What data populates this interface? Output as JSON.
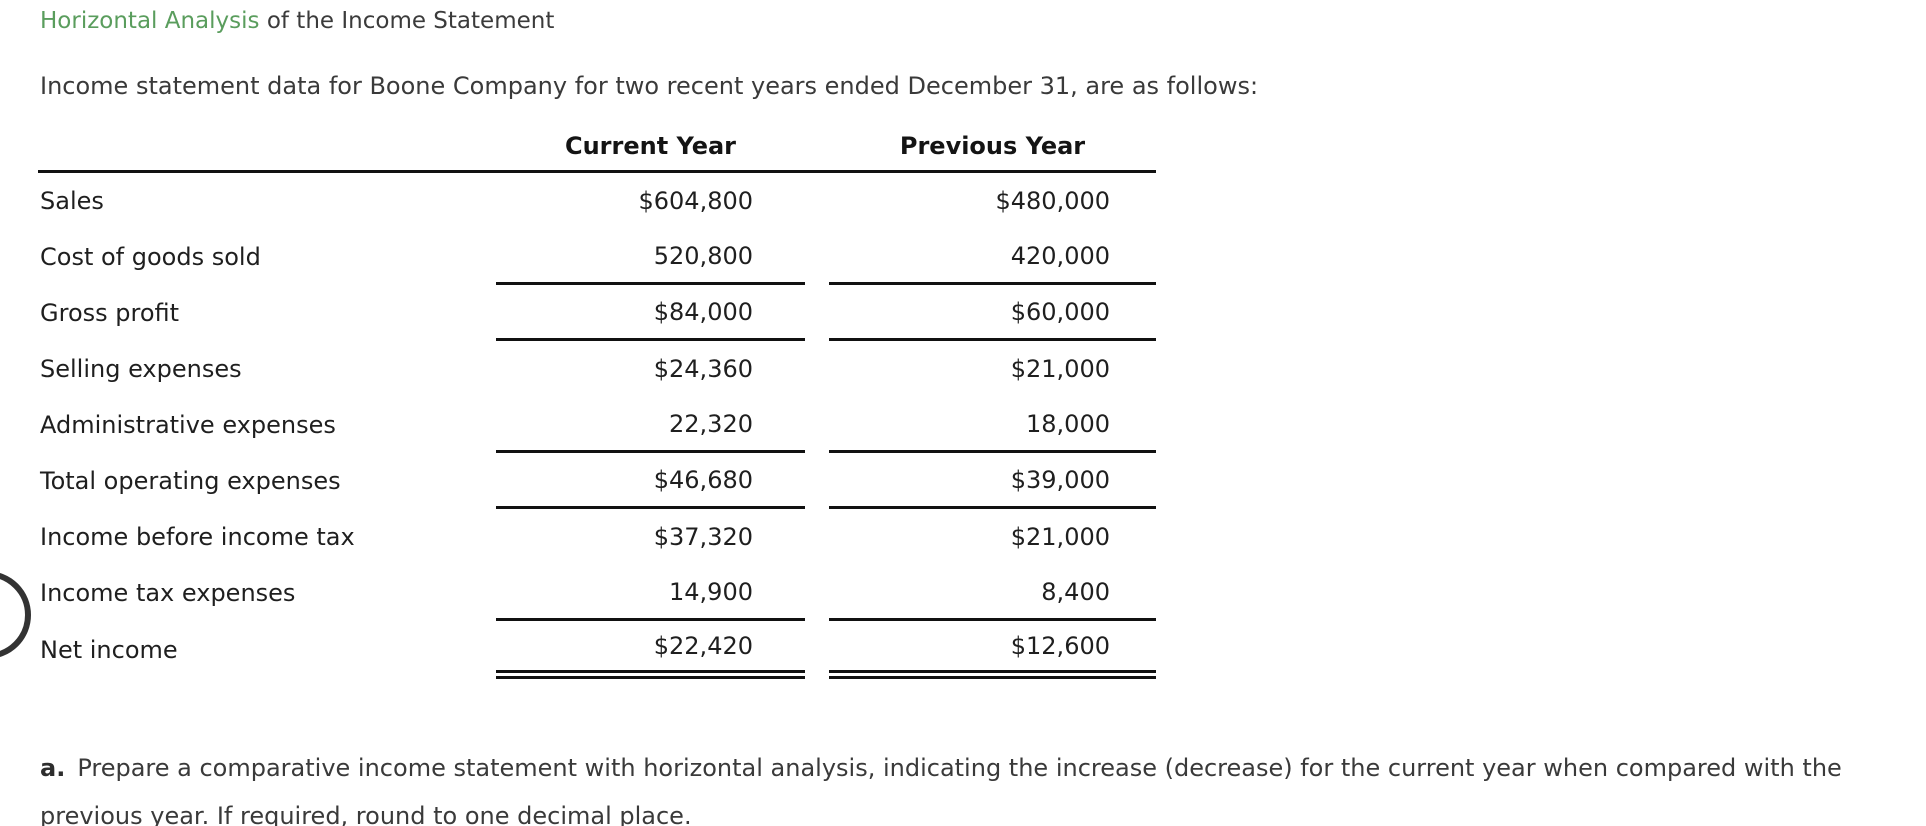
{
  "title": {
    "highlight": "Horizontal Analysis",
    "rest": " of the Income Statement"
  },
  "intro": "Income statement data for Boone Company for two recent years ended December 31, are as follows:",
  "table": {
    "columns": [
      "Current Year",
      "Previous Year"
    ],
    "rows": [
      {
        "label": "Sales",
        "current": "$604,800",
        "previous": "$480,000",
        "underline": "none"
      },
      {
        "label": "Cost of goods sold",
        "current": "520,800",
        "previous": "420,000",
        "underline": "single"
      },
      {
        "label": "Gross profit",
        "current": "$84,000",
        "previous": "$60,000",
        "underline": "single"
      },
      {
        "label": "Selling expenses",
        "current": "$24,360",
        "previous": "$21,000",
        "underline": "none"
      },
      {
        "label": "Administrative expenses",
        "current": "22,320",
        "previous": "18,000",
        "underline": "single"
      },
      {
        "label": "Total operating expenses",
        "current": "$46,680",
        "previous": "$39,000",
        "underline": "single"
      },
      {
        "label": "Income before income tax",
        "current": "$37,320",
        "previous": "$21,000",
        "underline": "none"
      },
      {
        "label": "Income tax expenses",
        "current": "14,900",
        "previous": "8,400",
        "underline": "single"
      },
      {
        "label": "Net income",
        "current": "$22,420",
        "previous": "$12,600",
        "underline": "double"
      }
    ]
  },
  "instruction": {
    "marker": "a.",
    "text": "Prepare a comparative income statement with horizontal analysis, indicating the increase (decrease) for the current year when compared with the previous year. If required, round to one decimal place."
  },
  "colors": {
    "link_green": "#5a9d5d",
    "body_text": "#3a3a3a",
    "table_text": "#1f1f1f",
    "rule": "#111111",
    "circle": "#333333"
  }
}
